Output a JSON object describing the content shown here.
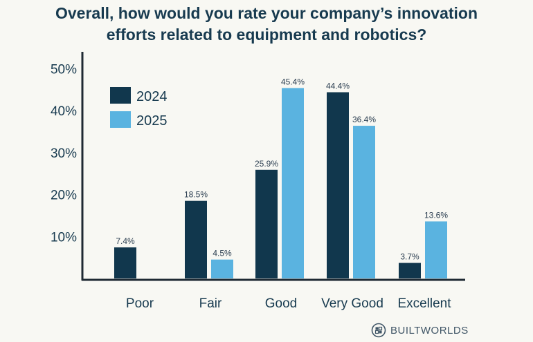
{
  "title": {
    "line1": "Overall, how would you rate your company’s innovation",
    "line2": "efforts related to equipment and robotics?"
  },
  "brand": {
    "name": "BUILTWORLDS",
    "icon": "builtworlds-logo-icon"
  },
  "colors": {
    "2024": "#11374d",
    "2025": "#5ab3e0",
    "axis": "#1f2a33",
    "text": "#173a4f"
  },
  "chart_data": {
    "type": "bar",
    "title": "Overall, how would you rate your company’s innovation efforts related to equipment and robotics?",
    "categories": [
      "Poor",
      "Fair",
      "Good",
      "Very Good",
      "Excellent"
    ],
    "series": [
      {
        "name": "2024",
        "values": [
          7.4,
          18.5,
          25.9,
          44.4,
          3.7
        ],
        "labels": [
          "7.4%",
          "18.5%",
          "25.9%",
          "44.4%",
          "3.7%"
        ]
      },
      {
        "name": "2025",
        "values": [
          null,
          4.5,
          45.4,
          36.4,
          13.6
        ],
        "labels": [
          "",
          "4.5%",
          "45.4%",
          "36.4%",
          "13.6%"
        ]
      }
    ],
    "yticks": [
      10,
      20,
      30,
      40,
      50
    ],
    "ytick_labels": [
      "10%",
      "20%",
      "30%",
      "40%",
      "50%"
    ],
    "ylim": [
      0,
      50
    ],
    "xlabel": "",
    "ylabel": "",
    "grid": false,
    "legend": "top-left"
  }
}
